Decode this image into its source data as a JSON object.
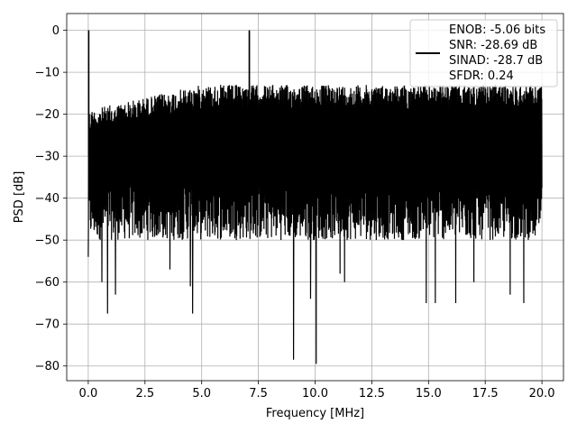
{
  "chart_data": {
    "type": "line",
    "title": "",
    "xlabel": "Frequency [MHz]",
    "ylabel": "PSD [dB]",
    "xlim": [
      -0.95,
      20.95
    ],
    "ylim": [
      -83.5,
      4
    ],
    "xticks": [
      0.0,
      2.5,
      5.0,
      7.5,
      10.0,
      12.5,
      15.0,
      17.5,
      20.0
    ],
    "xtick_labels": [
      "0.0",
      "2.5",
      "5.0",
      "7.5",
      "10.0",
      "12.5",
      "15.0",
      "17.5",
      "20.0"
    ],
    "yticks": [
      0,
      -10,
      -20,
      -30,
      -40,
      -50,
      -60,
      -70,
      -80
    ],
    "ytick_labels": [
      "0",
      "−10",
      "−20",
      "−30",
      "−40",
      "−50",
      "−60",
      "−70",
      "−80"
    ],
    "grid": true,
    "legend": {
      "placement": "top-right",
      "lines": [
        "ENOB: -5.06 bits",
        "SNR: -28.69 dB",
        "SINAD: -28.7 dB",
        "SFDR: 0.24"
      ]
    },
    "series": [
      {
        "color": "#000000",
        "description": "noise-like PSD spanning 0-20 MHz, mostly between -12 and -50 dB",
        "x_range": [
          0,
          20
        ],
        "upper_envelope_start": -19,
        "upper_envelope_end": -13,
        "lower_envelope": -50,
        "peaks": [
          {
            "x": 0.02,
            "y": 0
          },
          {
            "x": 7.1,
            "y": 0
          }
        ],
        "deep_dips": [
          {
            "x": 0.0,
            "y": -54
          },
          {
            "x": 0.6,
            "y": -60
          },
          {
            "x": 0.85,
            "y": -67.5
          },
          {
            "x": 1.2,
            "y": -63
          },
          {
            "x": 3.6,
            "y": -57
          },
          {
            "x": 4.5,
            "y": -61
          },
          {
            "x": 4.6,
            "y": -67.5
          },
          {
            "x": 9.05,
            "y": -78.5
          },
          {
            "x": 9.8,
            "y": -64
          },
          {
            "x": 10.05,
            "y": -79.5
          },
          {
            "x": 11.1,
            "y": -58
          },
          {
            "x": 11.3,
            "y": -60
          },
          {
            "x": 14.9,
            "y": -65
          },
          {
            "x": 15.3,
            "y": -65
          },
          {
            "x": 16.2,
            "y": -65
          },
          {
            "x": 17.0,
            "y": -60
          },
          {
            "x": 18.6,
            "y": -63
          },
          {
            "x": 19.2,
            "y": -65
          }
        ]
      }
    ]
  }
}
